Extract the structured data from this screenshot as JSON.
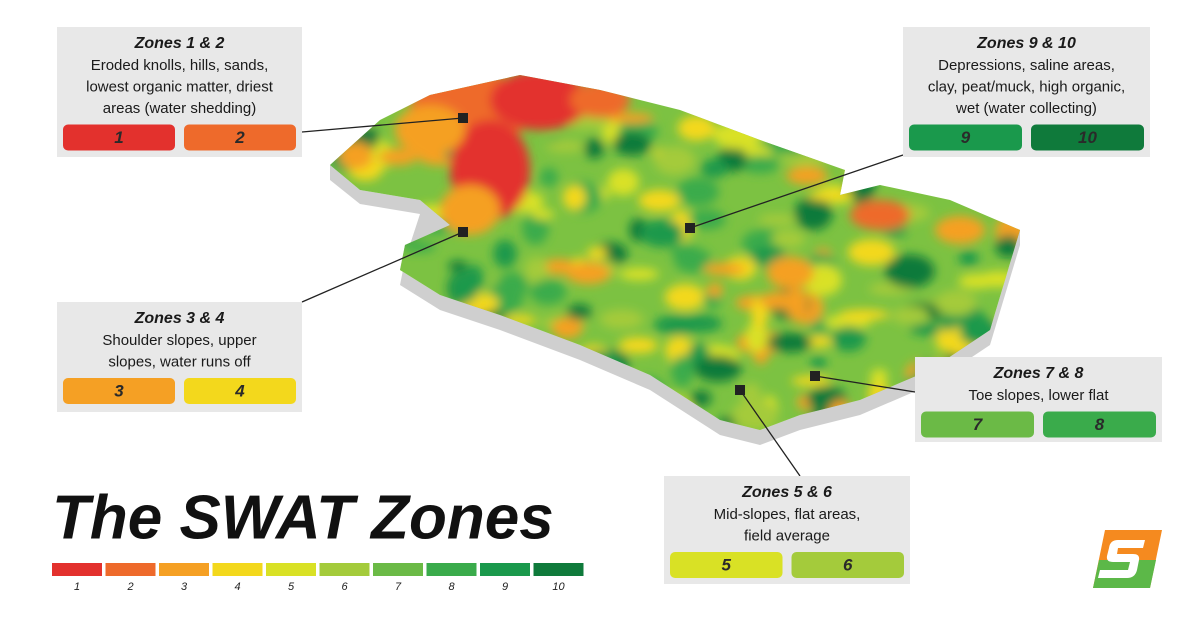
{
  "title": "The SWAT Zones",
  "legend": [
    {
      "label": "1",
      "color": "#e3312d"
    },
    {
      "label": "2",
      "color": "#ee6a2b"
    },
    {
      "label": "3",
      "color": "#f5a024"
    },
    {
      "label": "4",
      "color": "#f3d81c"
    },
    {
      "label": "5",
      "color": "#d9e125"
    },
    {
      "label": "6",
      "color": "#a4cb3b"
    },
    {
      "label": "7",
      "color": "#6bba46"
    },
    {
      "label": "8",
      "color": "#3aab4b"
    },
    {
      "label": "9",
      "color": "#1a994c"
    },
    {
      "label": "10",
      "color": "#0f7a3b"
    }
  ],
  "callouts": [
    {
      "title": "Zones 1 & 2",
      "lines": [
        "Eroded knolls, hills, sands,",
        "lowest organic matter, driest",
        "areas (water shedding)"
      ],
      "chips": [
        {
          "label": "1",
          "color": "#e3312d"
        },
        {
          "label": "2",
          "color": "#ee6a2b"
        }
      ]
    },
    {
      "title": "Zones 9 & 10",
      "lines": [
        "Depressions, saline areas,",
        "clay, peat/muck, high organic,",
        "wet (water collecting)"
      ],
      "chips": [
        {
          "label": "9",
          "color": "#1a994c"
        },
        {
          "label": "10",
          "color": "#0f7a3b"
        }
      ]
    },
    {
      "title": "Zones 3 & 4",
      "lines": [
        "Shoulder slopes, upper",
        "slopes, water runs off"
      ],
      "chips": [
        {
          "label": "3",
          "color": "#f5a024"
        },
        {
          "label": "4",
          "color": "#f3d81c"
        }
      ]
    },
    {
      "title": "Zones 7 & 8",
      "lines": [
        "Toe slopes, lower flat"
      ],
      "chips": [
        {
          "label": "7",
          "color": "#6bba46"
        },
        {
          "label": "8",
          "color": "#3aab4b"
        }
      ]
    },
    {
      "title": "Zones 5 & 6",
      "lines": [
        "Mid-slopes, flat areas,",
        "field average"
      ],
      "chips": [
        {
          "label": "5",
          "color": "#d9e125"
        },
        {
          "label": "6",
          "color": "#a4cb3b"
        }
      ]
    }
  ]
}
